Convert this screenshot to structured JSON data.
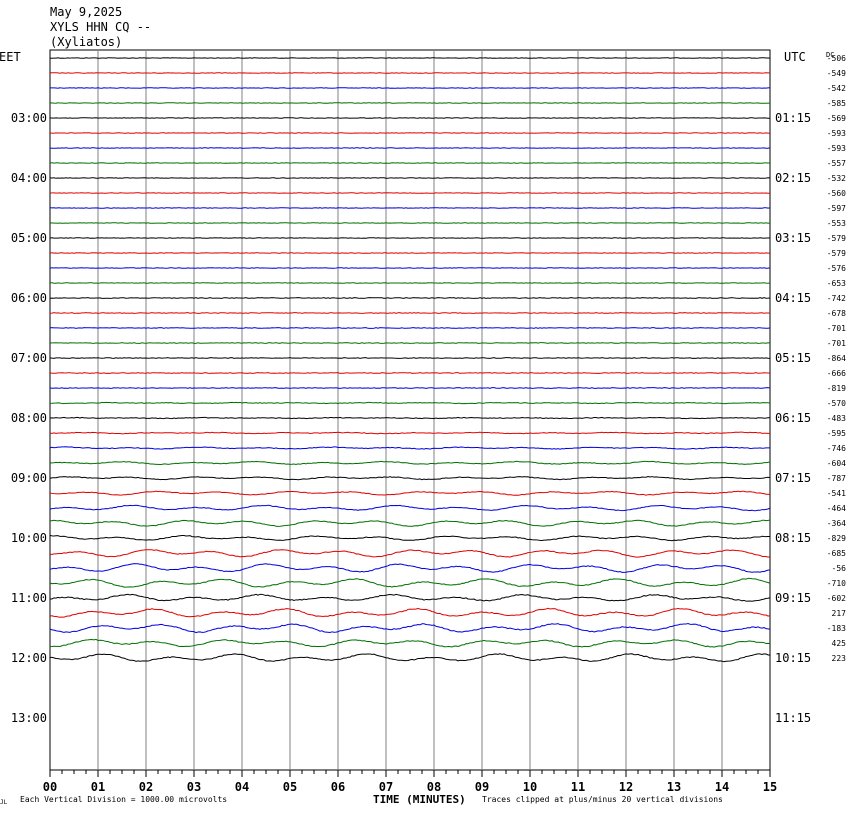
{
  "header": {
    "date": "May 9,2025",
    "station": "XYLS HHN CQ --",
    "location": "(Xyliatos)"
  },
  "left_tz": "EET",
  "right_tz": "UTC",
  "dc_label": "DC",
  "footer": {
    "division_note": "Each Vertical Division = 1000.00 microvolts",
    "x_title": "TIME (MINUTES)",
    "clip_note": "Traces clipped at plus/minus 20 vertical divisions",
    "corner_mark": "JL"
  },
  "colors": {
    "trace_cycle": [
      "#000000",
      "#e00000",
      "#0000e0",
      "#007000"
    ],
    "grid": "#808080",
    "border": "#000000"
  },
  "chart_data": {
    "type": "line",
    "title": "XYLS HHN CQ --",
    "xlabel": "TIME (MINUTES)",
    "x_ticks": [
      "00",
      "01",
      "02",
      "03",
      "04",
      "05",
      "06",
      "07",
      "08",
      "09",
      "10",
      "11",
      "12",
      "13",
      "14",
      "15"
    ],
    "xlim": [
      0,
      15
    ],
    "minutes_per_trace": 15,
    "left_hour_labels": [
      {
        "row": 4,
        "label": "03:00"
      },
      {
        "row": 8,
        "label": "04:00"
      },
      {
        "row": 12,
        "label": "05:00"
      },
      {
        "row": 16,
        "label": "06:00"
      },
      {
        "row": 20,
        "label": "07:00"
      },
      {
        "row": 24,
        "label": "08:00"
      },
      {
        "row": 28,
        "label": "09:00"
      },
      {
        "row": 32,
        "label": "10:00"
      },
      {
        "row": 36,
        "label": "11:00"
      },
      {
        "row": 40,
        "label": "12:00"
      },
      {
        "row": 44,
        "label": "13:00"
      }
    ],
    "right_hour_labels": [
      {
        "row": 4,
        "label": "01:15"
      },
      {
        "row": 8,
        "label": "02:15"
      },
      {
        "row": 12,
        "label": "03:15"
      },
      {
        "row": 16,
        "label": "04:15"
      },
      {
        "row": 20,
        "label": "05:15"
      },
      {
        "row": 24,
        "label": "06:15"
      },
      {
        "row": 28,
        "label": "07:15"
      },
      {
        "row": 32,
        "label": "08:15"
      },
      {
        "row": 36,
        "label": "09:15"
      },
      {
        "row": 40,
        "label": "10:15"
      },
      {
        "row": 44,
        "label": "11:15"
      }
    ],
    "dc_offsets": [
      "-506",
      "-549",
      "-542",
      "-585",
      "-569",
      "-593",
      "-593",
      "-557",
      "-532",
      "-560",
      "-597",
      "-553",
      "-579",
      "-579",
      "-576",
      "-653",
      "-742",
      "-678",
      "-701",
      "-701",
      "-864",
      "-666",
      "-819",
      "-570",
      "-483",
      "-595",
      "-746",
      "-604",
      "-787",
      "-541",
      "-464",
      "-364",
      "-829",
      "-685",
      "-56",
      "-710",
      "-602",
      "217",
      "-183",
      "425",
      "223"
    ],
    "traces": [
      {
        "row": 0,
        "amp": 0.3,
        "wave": 0.0
      },
      {
        "row": 1,
        "amp": 0.3,
        "wave": 0.0
      },
      {
        "row": 2,
        "amp": 0.3,
        "wave": 0.0
      },
      {
        "row": 3,
        "amp": 0.3,
        "wave": 0.0
      },
      {
        "row": 4,
        "amp": 0.3,
        "wave": 0.0
      },
      {
        "row": 5,
        "amp": 0.3,
        "wave": 0.0
      },
      {
        "row": 6,
        "amp": 0.3,
        "wave": 0.0
      },
      {
        "row": 7,
        "amp": 0.3,
        "wave": 0.0
      },
      {
        "row": 8,
        "amp": 0.3,
        "wave": 0.0
      },
      {
        "row": 9,
        "amp": 0.3,
        "wave": 0.0
      },
      {
        "row": 10,
        "amp": 0.3,
        "wave": 0.0
      },
      {
        "row": 11,
        "amp": 0.3,
        "wave": 0.0
      },
      {
        "row": 12,
        "amp": 0.3,
        "wave": 0.0
      },
      {
        "row": 13,
        "amp": 0.3,
        "wave": 0.0
      },
      {
        "row": 14,
        "amp": 0.3,
        "wave": 0.0
      },
      {
        "row": 15,
        "amp": 0.3,
        "wave": 0.0
      },
      {
        "row": 16,
        "amp": 0.35,
        "wave": 0.0
      },
      {
        "row": 17,
        "amp": 0.35,
        "wave": 0.0
      },
      {
        "row": 18,
        "amp": 0.35,
        "wave": 0.0
      },
      {
        "row": 19,
        "amp": 0.35,
        "wave": 0.0
      },
      {
        "row": 20,
        "amp": 0.35,
        "wave": 0.0
      },
      {
        "row": 21,
        "amp": 0.35,
        "wave": 0.0
      },
      {
        "row": 22,
        "amp": 0.35,
        "wave": 0.0
      },
      {
        "row": 23,
        "amp": 0.35,
        "wave": 0.3
      },
      {
        "row": 24,
        "amp": 0.35,
        "wave": 0.3
      },
      {
        "row": 25,
        "amp": 0.35,
        "wave": 0.5
      },
      {
        "row": 26,
        "amp": 0.35,
        "wave": 0.8
      },
      {
        "row": 27,
        "amp": 0.35,
        "wave": 1.2
      },
      {
        "row": 28,
        "amp": 0.35,
        "wave": 1.2
      },
      {
        "row": 29,
        "amp": 0.35,
        "wave": 1.6
      },
      {
        "row": 30,
        "amp": 0.35,
        "wave": 2.2
      },
      {
        "row": 31,
        "amp": 0.35,
        "wave": 2.6
      },
      {
        "row": 32,
        "amp": 0.4,
        "wave": 2.0
      },
      {
        "row": 33,
        "amp": 0.4,
        "wave": 3.2
      },
      {
        "row": 34,
        "amp": 0.4,
        "wave": 3.5
      },
      {
        "row": 35,
        "amp": 0.4,
        "wave": 3.6
      },
      {
        "row": 36,
        "amp": 0.5,
        "wave": 2.8
      },
      {
        "row": 37,
        "amp": 0.45,
        "wave": 3.6
      },
      {
        "row": 38,
        "amp": 0.5,
        "wave": 3.6
      },
      {
        "row": 39,
        "amp": 0.45,
        "wave": 3.2
      },
      {
        "row": 40,
        "amp": 0.45,
        "wave": 3.4
      }
    ]
  }
}
